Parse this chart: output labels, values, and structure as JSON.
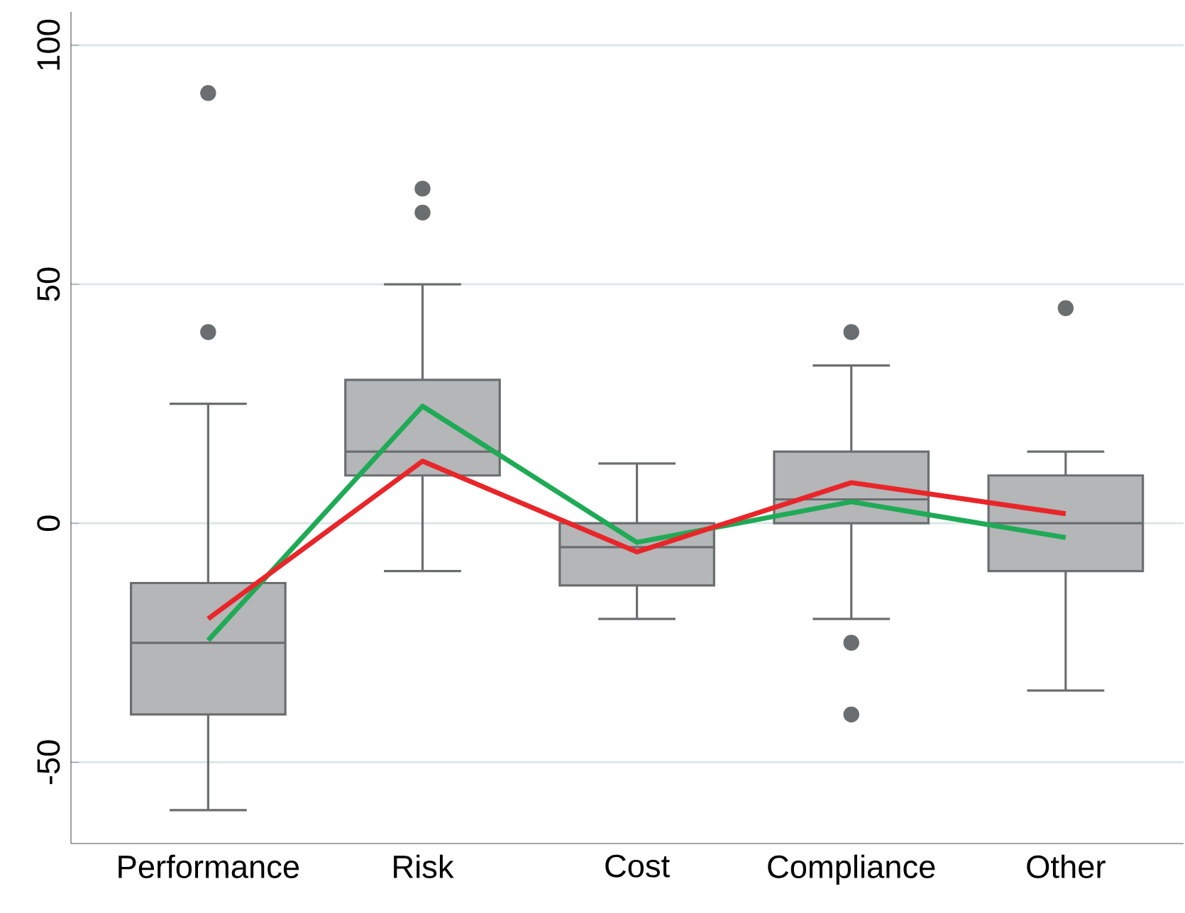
{
  "chart_data": {
    "type": "box",
    "categories": [
      "Performance",
      "Risk",
      "Cost",
      "Compliance",
      "Other"
    ],
    "color": "#b4b6b7",
    "boxes": [
      {
        "low": -60,
        "q1": -40,
        "median": -25,
        "q3": -12.5,
        "high": 25,
        "outliers": [
          90,
          40
        ]
      },
      {
        "low": -10,
        "q1": 10,
        "median": 15,
        "q3": 30,
        "high": 50,
        "outliers": [
          70,
          65
        ]
      },
      {
        "low": -20,
        "q1": -13,
        "median": -5,
        "q3": 0,
        "high": 12.5
      },
      {
        "low": -20,
        "q1": 0,
        "median": 5,
        "q3": 15,
        "high": 33,
        "outliers": [
          40,
          -25,
          -40
        ]
      },
      {
        "low": -35,
        "q1": -10,
        "median": 0,
        "q3": 10,
        "high": 15,
        "outliers": [
          45
        ]
      }
    ],
    "series": [
      {
        "type": "line",
        "color": "#1faa56",
        "values": [
          -24.5,
          24.5,
          -4,
          4.5,
          -3
        ]
      },
      {
        "type": "line",
        "color": "#e8262a",
        "values": [
          -20,
          13,
          -6,
          8.5,
          2
        ]
      }
    ],
    "ylim": [
      -67,
      107
    ],
    "yticks": [
      -50,
      0,
      50,
      100
    ],
    "grid": "y"
  }
}
